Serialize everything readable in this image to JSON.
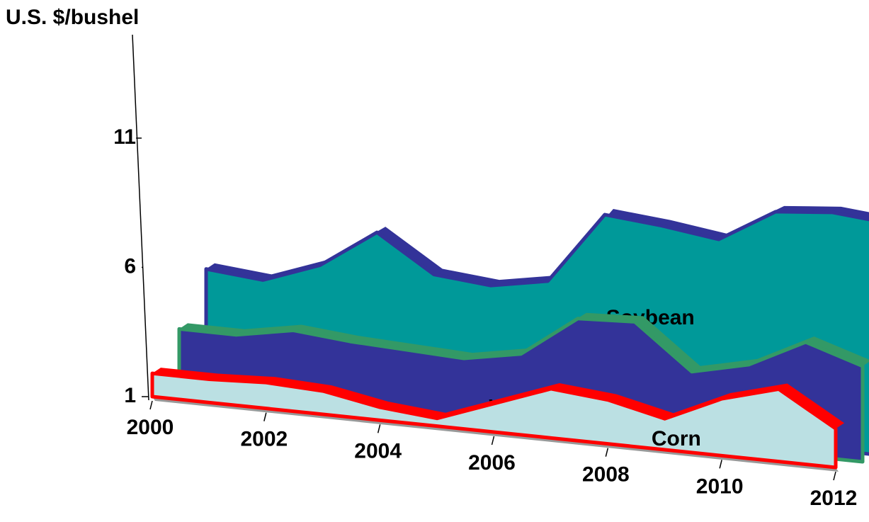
{
  "chart_data": {
    "type": "area3d",
    "y_label": "U.S. $/bushel",
    "x": [
      2000,
      2001,
      2002,
      2003,
      2004,
      2005,
      2006,
      2007,
      2008,
      2009,
      2010,
      2011,
      2012
    ],
    "xticks": [
      2000,
      2002,
      2004,
      2006,
      2008,
      2010,
      2012
    ],
    "ylim": [
      1,
      15
    ],
    "yticks": [
      1,
      6,
      11
    ],
    "series": [
      {
        "name": "Soybean",
        "color": "#009999",
        "edge": "#333399",
        "values": [
          5.5,
          5.3,
          6.1,
          7.6,
          6.2,
          6.0,
          6.4,
          9.2,
          9.0,
          8.7,
          10.0,
          10.2,
          10.0
        ]
      },
      {
        "name": "Wheat",
        "color": "#333399",
        "edge": "#339966",
        "values": [
          3.4,
          3.4,
          3.8,
          3.6,
          3.5,
          3.4,
          3.8,
          5.4,
          5.5,
          3.8,
          4.3,
          5.4,
          4.7
        ]
      },
      {
        "name": "Corn",
        "color": "#bbe0e3",
        "edge": "#ff0000",
        "values": [
          1.9,
          1.9,
          2.0,
          1.9,
          1.5,
          1.3,
          2.1,
          2.9,
          2.7,
          2.2,
          3.2,
          3.8,
          2.5
        ]
      }
    ]
  }
}
